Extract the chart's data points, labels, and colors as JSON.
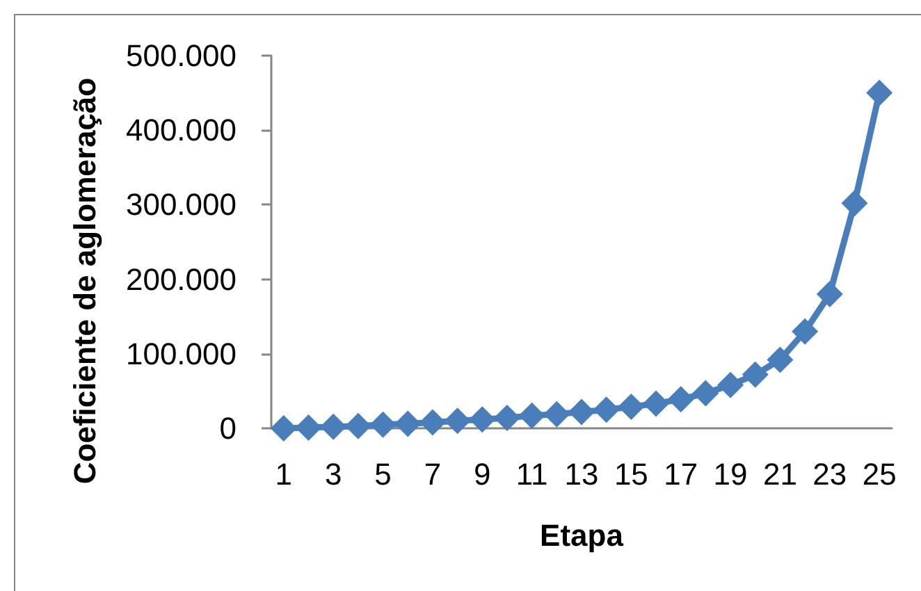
{
  "chart_data": {
    "type": "line",
    "xlabel": "Etapa",
    "ylabel": "Coeficiente de aglomeração",
    "x": [
      1,
      2,
      3,
      4,
      5,
      6,
      7,
      8,
      9,
      10,
      11,
      12,
      13,
      14,
      15,
      16,
      17,
      18,
      19,
      20,
      21,
      22,
      23,
      24,
      25
    ],
    "values": [
      0,
      1000,
      2000,
      3000,
      5000,
      6000,
      8000,
      10000,
      12000,
      14000,
      17000,
      19000,
      22000,
      25000,
      29000,
      33000,
      39000,
      47000,
      58000,
      72000,
      92000,
      130000,
      180000,
      302000,
      450000
    ],
    "color": "#4a7ebb",
    "xlim": [
      0.5,
      25.5
    ],
    "xticks": [
      1,
      3,
      5,
      7,
      9,
      11,
      13,
      15,
      17,
      19,
      21,
      23,
      25
    ],
    "ylim": [
      0,
      500000
    ],
    "yticks": [
      0,
      {
        "value": 100000,
        "label": "100.000"
      },
      {
        "value": 200000,
        "label": "200.000"
      },
      {
        "value": 300000,
        "label": "300.000"
      },
      {
        "value": 400000,
        "label": "400.000"
      },
      {
        "value": 500000,
        "label": "500.000"
      }
    ],
    "grid": false,
    "marker": "diamond",
    "line_style": "solid"
  }
}
